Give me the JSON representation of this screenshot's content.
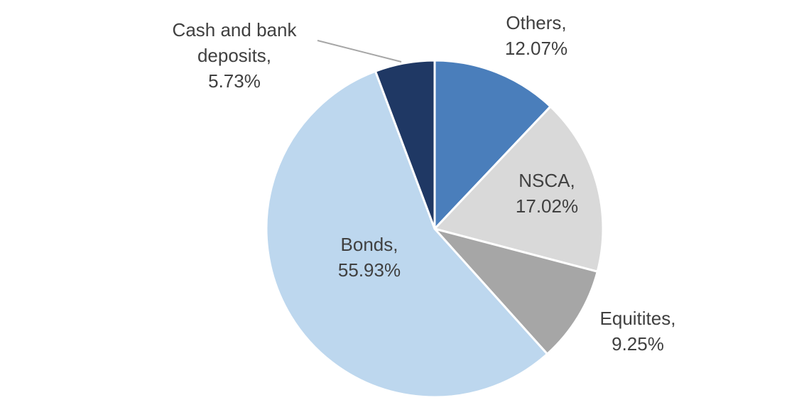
{
  "chart_data": {
    "type": "pie",
    "title": "",
    "legend": "none",
    "start_angle_deg": -90,
    "direction": "clockwise",
    "slices": [
      {
        "label": "Others",
        "value": 12.07,
        "color": "#4A7EBB"
      },
      {
        "label": "NSCA",
        "value": 17.02,
        "color": "#D9D9D9"
      },
      {
        "label": "Equitites",
        "value": 9.25,
        "color": "#A6A6A6"
      },
      {
        "label": "Bonds",
        "value": 55.93,
        "color": "#BDD7EE"
      },
      {
        "label": "Cash and bank deposits",
        "value": 5.73,
        "color": "#1F3864"
      }
    ]
  },
  "labels": {
    "others": {
      "line1": "Others,",
      "line2": "12.07%"
    },
    "nsca": {
      "line1": "NSCA,",
      "line2": "17.02%"
    },
    "equitites": {
      "line1": "Equitites,",
      "line2": "9.25%"
    },
    "bonds": {
      "line1": "Bonds,",
      "line2": "55.93%"
    },
    "cash": {
      "line1": "Cash and bank",
      "line2": "deposits,",
      "line3": "5.73%"
    }
  }
}
